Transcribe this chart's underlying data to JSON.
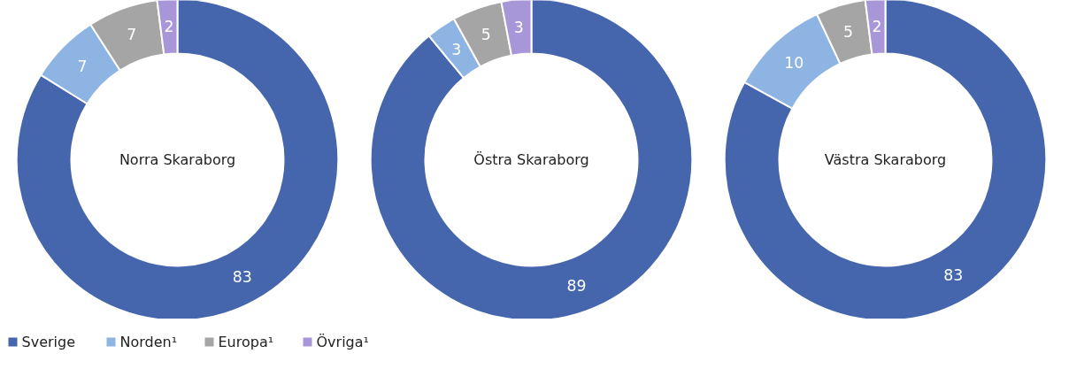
{
  "chart_data": [
    {
      "type": "donut",
      "title": "Norra Skaraborg",
      "categories": [
        "Sverige",
        "Norden¹",
        "Europa¹",
        "Övriga¹"
      ],
      "values": [
        83,
        7,
        7,
        2
      ],
      "colors": [
        "#4565ad",
        "#8db4e2",
        "#a5a5a5",
        "#a897d8"
      ],
      "data_labels": true,
      "legend": "bottom left"
    },
    {
      "type": "donut",
      "title": "Östra Skaraborg",
      "categories": [
        null,
        null,
        null,
        null
      ],
      "values": [
        89,
        3,
        5,
        3
      ],
      "colors": [
        "#4565ad",
        "#8db4e2",
        "#a5a5a5",
        "#a897d8"
      ],
      "data_labels": true
    },
    {
      "type": "donut",
      "title": "Västra Skaraborg",
      "categories": [
        null,
        null,
        null,
        null
      ],
      "values": [
        83,
        10,
        5,
        2
      ],
      "colors": [
        "#4565ad",
        "#8db4e2",
        "#a5a5a5",
        "#a897d8"
      ],
      "data_labels": true
    }
  ]
}
